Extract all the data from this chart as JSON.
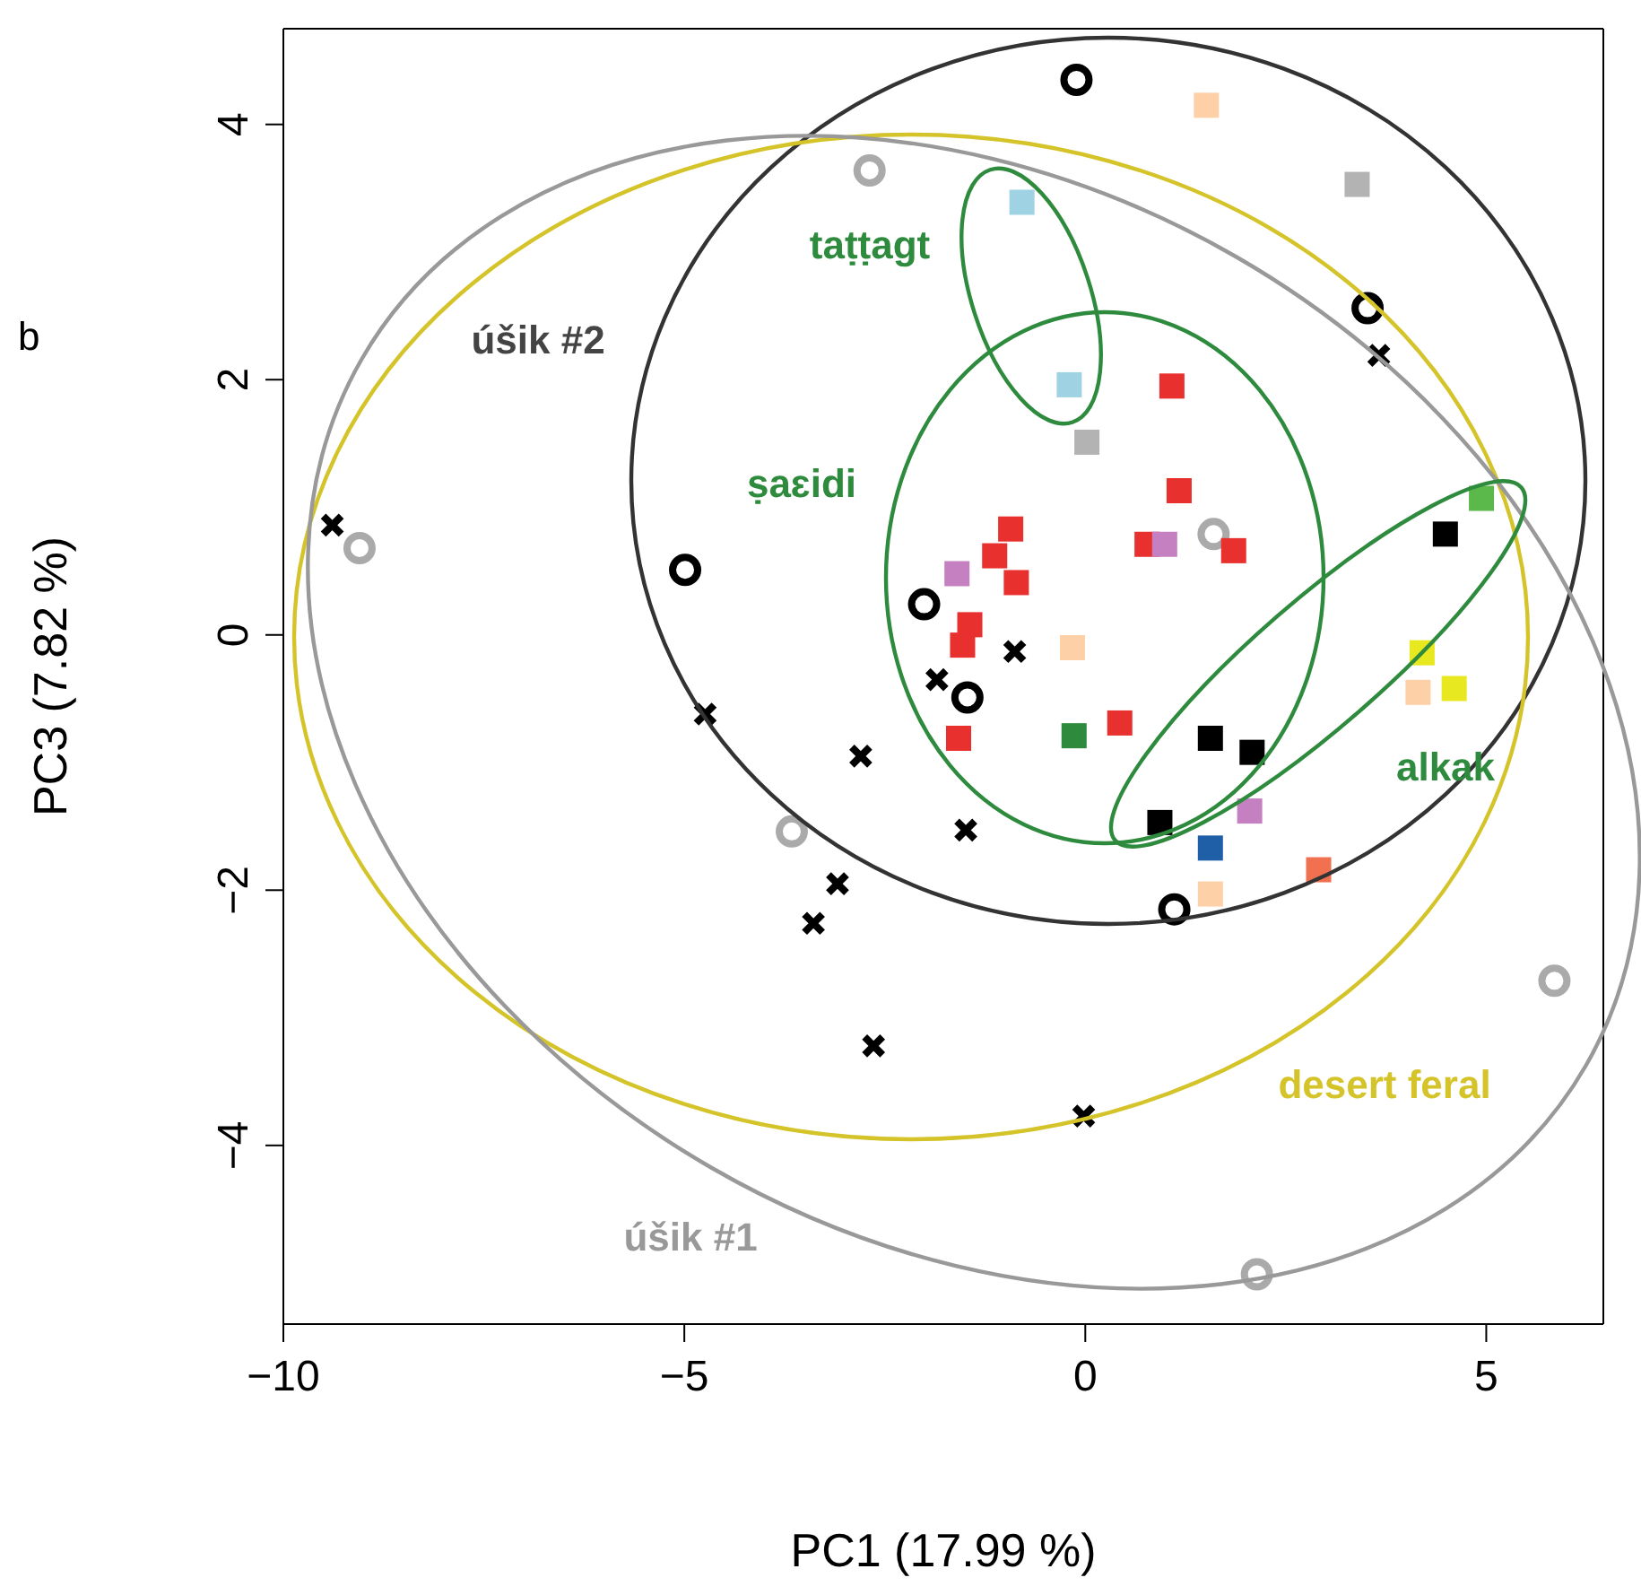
{
  "chart_data": {
    "type": "scatter",
    "xlabel": "PC1 (17.99 %)",
    "ylabel": "PC3 (7.82 %)",
    "xlim": [
      -10,
      6.46
    ],
    "ylim": [
      -5.4,
      4.75
    ],
    "xticks": [
      -10,
      -5,
      0,
      5
    ],
    "yticks": [
      -4,
      -2,
      0,
      2,
      4
    ],
    "grid": false,
    "legend": false,
    "annotations": [
      "b",
      "úšik #2",
      "taṭṭagt",
      "ṣaɛidi",
      "alkak",
      "desert feral",
      "úšik #1"
    ],
    "series": [
      {
        "type": "scatter",
        "color": "#000000",
        "marker": "cross",
        "x": [
          -9.39,
          -4.74,
          -2.8,
          -1.49,
          -0.88,
          -1.85,
          -3.09,
          -3.39,
          -2.64,
          -0.02,
          3.66
        ],
        "values": [
          0.86,
          -0.62,
          -0.95,
          -1.53,
          -0.13,
          -0.35,
          -1.95,
          -2.26,
          -3.22,
          -3.77,
          2.19
        ]
      },
      {
        "type": "scatter",
        "color": "#000000",
        "marker": "circle",
        "x": [
          -0.11,
          3.52,
          -4.99,
          -2.01,
          -1.47,
          1.11
        ],
        "values": [
          4.35,
          2.56,
          0.51,
          0.24,
          -0.49,
          -2.15
        ]
      },
      {
        "type": "scatter",
        "color": "#aaaaaa",
        "marker": "circle",
        "x": [
          -2.69,
          -9.05,
          1.6,
          -3.66,
          5.85,
          2.14
        ],
        "values": [
          3.64,
          0.68,
          0.79,
          -1.54,
          -2.71,
          -5.01
        ]
      },
      {
        "type": "scatter",
        "color": "#e8302f",
        "marker": "square",
        "x": [
          1.51,
          -0.16,
          4.15,
          1.56,
          3.39,
          0.02,
          -0.79,
          -0.2,
          1.08,
          1.17,
          -0.93,
          -1.13,
          -0.86,
          -1.44,
          -1.53,
          -1.58,
          0.77,
          1.85,
          0.43,
          -1.6,
          0.99,
          2.05,
          -0.14,
          4.94,
          4.49,
          1.56,
          2.08,
          0.93,
          1.56,
          2.91,
          4.2,
          4.6
        ],
        "values": [
          4.15,
          -0.1,
          -0.45,
          -2.03,
          3.53,
          1.51,
          3.39,
          1.96,
          1.95,
          1.13,
          0.83,
          0.62,
          0.41,
          0.08,
          -0.08,
          -0.81,
          0.71,
          0.66,
          -0.69,
          0.48,
          0.71,
          -1.38,
          -0.79,
          1.07,
          0.79,
          -0.81,
          -0.92,
          -1.47,
          -1.67,
          -1.84,
          -0.14,
          -0.42
        ],
        "colors": [
          "#fdd0a8",
          "#fdd0a8",
          "#fdd0a8",
          "#fdd0a8",
          "#b3b3b3",
          "#b3b3b3",
          "#9fd3e3",
          "#9fd3e3",
          "#e8302f",
          "#e8302f",
          "#e8302f",
          "#e8302f",
          "#e8302f",
          "#e8302f",
          "#e8302f",
          "#e8302f",
          "#e8302f",
          "#e8302f",
          "#e8302f",
          "#c480c0",
          "#c480c0",
          "#c480c0",
          "#2e8b3e",
          "#5ab94a",
          "#000000",
          "#000000",
          "#000000",
          "#000000",
          "#1e5fa8",
          "#f07050",
          "#e8e820",
          "#e8e820"
        ]
      }
    ]
  }
}
